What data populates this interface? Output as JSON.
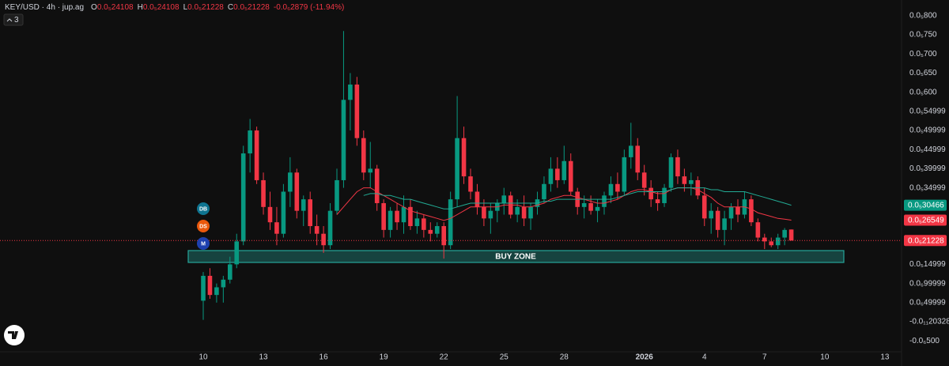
{
  "legend": {
    "symbol": "KEY/USD · 4h · jup.ag",
    "ohlc": [
      {
        "key": "O",
        "label": "0.0₅24108"
      },
      {
        "key": "H",
        "label": "0.0₅24108"
      },
      {
        "key": "L",
        "label": "0.0₅21228"
      },
      {
        "key": "C",
        "label": "0.0₅21228"
      }
    ],
    "change": "-0.0₆2879 (-11.94%)",
    "indicator_count": "3"
  },
  "badges": [
    {
      "text": "DB",
      "color": "#0e7490"
    },
    {
      "text": "DS",
      "color": "#ea580c"
    },
    {
      "text": "M",
      "color": "#1e40af"
    }
  ],
  "chart_data": {
    "type": "candlestick",
    "categories": [
      "10",
      null,
      null,
      null,
      null,
      null,
      null,
      null,
      null,
      "13",
      null,
      null,
      null,
      null,
      null,
      null,
      null,
      null,
      "16",
      null,
      null,
      null,
      null,
      null,
      null,
      null,
      null,
      "19",
      null,
      null,
      null,
      null,
      null,
      null,
      null,
      null,
      "22",
      null,
      null,
      null,
      null,
      null,
      null,
      null,
      null,
      "25",
      null,
      null,
      null,
      null,
      null,
      null,
      null,
      null,
      "28",
      null,
      null,
      null,
      null,
      null,
      null,
      null,
      null,
      null,
      null,
      null,
      "2026",
      null,
      null,
      null,
      null,
      null,
      null,
      null,
      null,
      "4",
      null,
      null,
      null,
      null,
      null,
      null,
      null,
      null,
      "7",
      null,
      null,
      null,
      null,
      null,
      null,
      null,
      null,
      "10",
      null,
      null,
      null,
      null,
      null,
      null,
      null,
      null,
      "13",
      null,
      null
    ],
    "open": [
      5.5e-07,
      1.2e-06,
      7e-07,
      9e-07,
      1.1e-06,
      1.5e-06,
      2.1e-06,
      4.4e-06,
      5e-06,
      3.7e-06,
      3e-06,
      2.6e-06,
      2.3e-06,
      3.4e-06,
      3.9e-06,
      2.9e-06,
      3.2e-06,
      2.5e-06,
      2.3e-06,
      2e-06,
      2.9e-06,
      3.7e-06,
      5.8e-06,
      6.2e-06,
      4.8e-06,
      3.9e-06,
      4e-06,
      3.1e-06,
      2.4e-06,
      2.9e-06,
      2.6e-06,
      3e-06,
      2.5e-06,
      2.7e-06,
      2.4e-06,
      2.3e-06,
      2.5e-06,
      2e-06,
      3.2e-06,
      4.8e-06,
      3.8e-06,
      3.4e-06,
      3e-06,
      2.7e-06,
      2.9e-06,
      3.1e-06,
      3.3e-06,
      2.8e-06,
      3e-06,
      2.7e-06,
      3e-06,
      3.2e-06,
      3.6e-06,
      4e-06,
      3.7e-06,
      4.2e-06,
      3.4e-06,
      3e-06,
      3.1e-06,
      2.9e-06,
      3e-06,
      3.3e-06,
      3.6e-06,
      3.4e-06,
      4.3e-06,
      4.6e-06,
      3.9e-06,
      3.5e-06,
      3.2e-06,
      3.1e-06,
      3.5e-06,
      4.3e-06,
      3.8e-06,
      3.6e-06,
      3.7e-06,
      3.3e-06,
      2.7e-06,
      2.9e-06,
      2.4e-06,
      2.7e-06,
      3e-06,
      2.8e-06,
      3.2e-06,
      2.6e-06,
      2.2e-06,
      2.1e-06,
      2e-06,
      2.2e-06,
      2.4108e-06,
      null,
      null,
      null,
      null,
      null,
      null,
      null,
      null,
      null,
      null,
      null,
      null,
      null,
      null,
      null,
      null
    ],
    "high": [
      1.3e-06,
      1.4e-06,
      1e-06,
      1.2e-06,
      1.7e-06,
      2.3e-06,
      4.6e-06,
      5.3e-06,
      5.1e-06,
      3.9e-06,
      3.4e-06,
      3e-06,
      3.6e-06,
      4.3e-06,
      4e-06,
      3.3e-06,
      3.4e-06,
      2.8e-06,
      2.5e-06,
      3.1e-06,
      4e-06,
      7.6e-06,
      6.5e-06,
      6.4e-06,
      5e-06,
      4.7e-06,
      4.1e-06,
      3.2e-06,
      3e-06,
      3.1e-06,
      3.3e-06,
      3.2e-06,
      2.9e-06,
      2.8e-06,
      2.6e-06,
      2.6e-06,
      2.6e-06,
      3.4e-06,
      5.9e-06,
      5.1e-06,
      4e-06,
      3.6e-06,
      3.2e-06,
      3.1e-06,
      3.2e-06,
      3.5e-06,
      3.4e-06,
      3.2e-06,
      3.3e-06,
      3.1e-06,
      3.4e-06,
      3.8e-06,
      4.3e-06,
      4.3e-06,
      4.6e-06,
      4.4e-06,
      3.5e-06,
      3.3e-06,
      3.3e-06,
      3.2e-06,
      3.4e-06,
      3.8e-06,
      3.9e-06,
      4.5e-06,
      5.2e-06,
      4.8e-06,
      4.1e-06,
      3.7e-06,
      3.4e-06,
      3.6e-06,
      4.4e-06,
      4.5e-06,
      4e-06,
      3.9e-06,
      3.8e-06,
      3.5e-06,
      3.1e-06,
      3e-06,
      2.9e-06,
      3.1e-06,
      3.2e-06,
      3.4e-06,
      3.3e-06,
      2.7e-06,
      2.3e-06,
      2.2e-06,
      2.3e-06,
      2.45e-06,
      2.4108e-06,
      null,
      null,
      null,
      null,
      null,
      null,
      null,
      null,
      null,
      null,
      null,
      null,
      null,
      null,
      null,
      null
    ],
    "low": [
      5e-08,
      6e-07,
      5e-07,
      5e-07,
      1e-06,
      1.4e-06,
      2e-06,
      3.9e-06,
      3.6e-06,
      2.8e-06,
      2.4e-06,
      2e-06,
      2.2e-06,
      3e-06,
      2.7e-06,
      2.5e-06,
      2.3e-06,
      2e-06,
      1.8e-06,
      1.9e-06,
      2.8e-06,
      3.5e-06,
      5e-06,
      4.6e-06,
      3.7e-06,
      3.5e-06,
      2.9e-06,
      2.2e-06,
      2.2e-06,
      2.4e-06,
      2.3e-06,
      2.4e-06,
      2.3e-06,
      2.2e-06,
      2.1e-06,
      2.2e-06,
      1.65e-06,
      1.9e-06,
      3e-06,
      3.6e-06,
      3.2e-06,
      2.8e-06,
      2.5e-06,
      2.3e-06,
      2.6e-06,
      2.8e-06,
      2.7e-06,
      2.6e-06,
      2.5e-06,
      2.4e-06,
      2.8e-06,
      3.1e-06,
      3.4e-06,
      3.5e-06,
      3.6e-06,
      3.3e-06,
      2.8e-06,
      2.7e-06,
      2.8e-06,
      2.6e-06,
      2.8e-06,
      3.1e-06,
      3.2e-06,
      3.3e-06,
      4e-06,
      3.7e-06,
      3.3e-06,
      3e-06,
      2.9e-06,
      3e-06,
      3.4e-06,
      3.6e-06,
      3.4e-06,
      3.3e-06,
      3.2e-06,
      2.5e-06,
      2.3e-06,
      2.2e-06,
      2e-06,
      2.4e-06,
      2.6e-06,
      2.7e-06,
      2.5e-06,
      2.1e-06,
      1.9e-06,
      1.95e-06,
      1.9e-06,
      2e-06,
      2.1228e-06,
      null,
      null,
      null,
      null,
      null,
      null,
      null,
      null,
      null,
      null,
      null,
      null,
      null,
      null,
      null,
      null
    ],
    "close": [
      1.2e-06,
      7e-07,
      9e-07,
      1.1e-06,
      1.5e-06,
      2.1e-06,
      4.4e-06,
      5e-06,
      3.7e-06,
      3e-06,
      2.6e-06,
      2.3e-06,
      3.4e-06,
      3.9e-06,
      2.9e-06,
      3.2e-06,
      2.5e-06,
      2.3e-06,
      2e-06,
      2.9e-06,
      3.7e-06,
      5.8e-06,
      6.2e-06,
      4.8e-06,
      3.9e-06,
      4e-06,
      3.1e-06,
      2.4e-06,
      2.9e-06,
      2.6e-06,
      3e-06,
      2.5e-06,
      2.7e-06,
      2.4e-06,
      2.3e-06,
      2.5e-06,
      2e-06,
      3.2e-06,
      4.8e-06,
      3.8e-06,
      3.4e-06,
      3e-06,
      2.7e-06,
      2.9e-06,
      3.1e-06,
      3.3e-06,
      2.8e-06,
      3e-06,
      2.7e-06,
      3e-06,
      3.2e-06,
      3.6e-06,
      4e-06,
      3.7e-06,
      4.2e-06,
      3.4e-06,
      3e-06,
      3.1e-06,
      2.9e-06,
      3e-06,
      3.3e-06,
      3.6e-06,
      3.4e-06,
      4.3e-06,
      4.6e-06,
      3.9e-06,
      3.5e-06,
      3.2e-06,
      3.1e-06,
      3.5e-06,
      4.3e-06,
      3.8e-06,
      3.6e-06,
      3.7e-06,
      3.3e-06,
      2.7e-06,
      2.9e-06,
      2.4e-06,
      2.7e-06,
      3e-06,
      2.8e-06,
      3.2e-06,
      2.6e-06,
      2.2e-06,
      2.1e-06,
      2e-06,
      2.2e-06,
      2.4e-06,
      2.1228e-06,
      null,
      null,
      null,
      null,
      null,
      null,
      null,
      null,
      null,
      null,
      null,
      null,
      null,
      null,
      null,
      null
    ],
    "up_color": "#089981",
    "down_color": "#f23645",
    "series": [
      {
        "color": "#f23645",
        "values": [
          null,
          null,
          null,
          null,
          null,
          null,
          null,
          null,
          null,
          null,
          null,
          null,
          null,
          null,
          null,
          null,
          null,
          null,
          null,
          null,
          2.8e-06,
          3e-06,
          3.2e-06,
          3.4e-06,
          3.5e-06,
          3.5e-06,
          3.4e-06,
          3.3e-06,
          3.2e-06,
          3.1e-06,
          3e-06,
          2.9e-06,
          2.85e-06,
          2.8e-06,
          2.75e-06,
          2.7e-06,
          2.65e-06,
          2.7e-06,
          2.8e-06,
          2.9e-06,
          3e-06,
          3e-06,
          3e-06,
          3e-06,
          3e-06,
          3.05e-06,
          3.05e-06,
          3.05e-06,
          3e-06,
          3e-06,
          3.05e-06,
          3.1e-06,
          3.2e-06,
          3.25e-06,
          3.3e-06,
          3.3e-06,
          3.25e-06,
          3.2e-06,
          3.15e-06,
          3.1e-06,
          3.1e-06,
          3.15e-06,
          3.2e-06,
          3.3e-06,
          3.4e-06,
          3.45e-06,
          3.45e-06,
          3.4e-06,
          3.35e-06,
          3.35e-06,
          3.45e-06,
          3.5e-06,
          3.5e-06,
          3.5e-06,
          3.45e-06,
          3.35e-06,
          3.25e-06,
          3.1e-06,
          3e-06,
          3e-06,
          3e-06,
          3e-06,
          2.95e-06,
          2.85e-06,
          2.8e-06,
          2.75e-06,
          2.7e-06,
          2.68e-06,
          2.6549e-06,
          null,
          null,
          null,
          null,
          null,
          null,
          null,
          null,
          null,
          null,
          null,
          null,
          null,
          null,
          null,
          null
        ]
      },
      {
        "color": "#22ab94",
        "values": [
          null,
          null,
          null,
          null,
          null,
          null,
          null,
          null,
          null,
          null,
          null,
          null,
          null,
          null,
          null,
          null,
          null,
          null,
          null,
          null,
          null,
          null,
          null,
          null,
          3.3e-06,
          3.35e-06,
          3.35e-06,
          3.3e-06,
          3.3e-06,
          3.25e-06,
          3.2e-06,
          3.2e-06,
          3.15e-06,
          3.1e-06,
          3.05e-06,
          3e-06,
          2.95e-06,
          2.95e-06,
          3e-06,
          3.05e-06,
          3.1e-06,
          3.1e-06,
          3.1e-06,
          3.1e-06,
          3.1e-06,
          3.1e-06,
          3.1e-06,
          3.1e-06,
          3.1e-06,
          3.1e-06,
          3.1e-06,
          3.15e-06,
          3.15e-06,
          3.2e-06,
          3.2e-06,
          3.2e-06,
          3.2e-06,
          3.2e-06,
          3.2e-06,
          3.2e-06,
          3.2e-06,
          3.2e-06,
          3.25e-06,
          3.3e-06,
          3.35e-06,
          3.4e-06,
          3.4e-06,
          3.4e-06,
          3.4e-06,
          3.4e-06,
          3.45e-06,
          3.5e-06,
          3.5e-06,
          3.5e-06,
          3.5e-06,
          3.5e-06,
          3.45e-06,
          3.45e-06,
          3.4e-06,
          3.4e-06,
          3.4e-06,
          3.4e-06,
          3.35e-06,
          3.3e-06,
          3.25e-06,
          3.2e-06,
          3.15e-06,
          3.1e-06,
          3.0466e-06,
          null,
          null,
          null,
          null,
          null,
          null,
          null,
          null,
          null,
          null,
          null,
          null,
          null,
          null,
          null,
          null
        ]
      }
    ],
    "ylim": [
      -7.85e-07,
      8.41e-06
    ],
    "yticks": [
      {
        "value": 8e-06,
        "label": "0.0₅800"
      },
      {
        "value": 7.5e-06,
        "label": "0.0₅750"
      },
      {
        "value": 7e-06,
        "label": "0.0₅700"
      },
      {
        "value": 6.5e-06,
        "label": "0.0₅650"
      },
      {
        "value": 6e-06,
        "label": "0.0₅600"
      },
      {
        "value": 5.5e-06,
        "label": "0.0₅54999"
      },
      {
        "value": 5e-06,
        "label": "0.0₅49999"
      },
      {
        "value": 4.5e-06,
        "label": "0.0₅44999"
      },
      {
        "value": 4e-06,
        "label": "0.0₅39999"
      },
      {
        "value": 3.5e-06,
        "label": "0.0₅34999"
      },
      {
        "value": 1.5e-06,
        "label": "0.0₅14999"
      },
      {
        "value": 1e-06,
        "label": "0.0₆99999"
      },
      {
        "value": 5e-07,
        "label": "0.0₆49999"
      },
      {
        "value": -2.0328e-12,
        "label": "-0.0₁₁20328"
      },
      {
        "value": -5e-07,
        "label": "-0.0₆500"
      }
    ],
    "price_labels": [
      {
        "value": 3.0466e-06,
        "label": "0.0₅30466",
        "color": "#089981"
      },
      {
        "value": 2.6549e-06,
        "label": "0.0₅26549",
        "color": "#f23645"
      },
      {
        "value": 2.1228e-06,
        "label": "0.0₅21228",
        "color": "#f23645"
      }
    ],
    "zones": [
      {
        "label": "BUY ZONE",
        "low": 1.55e-06,
        "high": 1.86e-06,
        "color": "#26a69a"
      }
    ]
  }
}
